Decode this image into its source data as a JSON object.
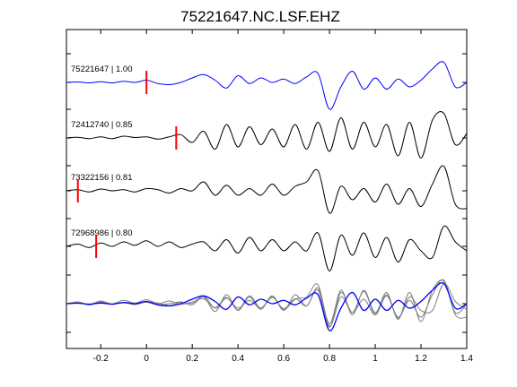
{
  "chart_data": {
    "type": "line",
    "title": "75221647.NC.LSF.EHZ",
    "xlabel": "",
    "ylabel": "",
    "xlim": [
      -0.35,
      1.4
    ],
    "x_ticks": [
      -0.2,
      0,
      0.2,
      0.4,
      0.6,
      0.8,
      1,
      1.2,
      1.4
    ],
    "x_tick_labels": [
      "-0.2",
      "0",
      "0.2",
      "0.4",
      "0.6",
      "0.8",
      "1",
      "1.2",
      "1.4"
    ],
    "grid": false,
    "colors": {
      "master": "#0000ff",
      "other": "#000000",
      "stack_other": "#808080",
      "pick": "#ff0000"
    },
    "traces": [
      {
        "label": "75221647 | 1.00",
        "event_id": "75221647",
        "correlation": 1.0,
        "pick_time": 0.0,
        "color": "#0000ff",
        "x": [
          -0.35,
          -0.3,
          -0.25,
          -0.2,
          -0.15,
          -0.1,
          -0.05,
          0,
          0.05,
          0.1,
          0.15,
          0.2,
          0.25,
          0.3,
          0.35,
          0.4,
          0.45,
          0.5,
          0.55,
          0.6,
          0.65,
          0.7,
          0.75,
          0.8,
          0.85,
          0.9,
          0.95,
          1.0,
          1.05,
          1.1,
          1.15,
          1.2,
          1.25,
          1.3,
          1.35,
          1.4
        ],
        "y": [
          0.0,
          0.02,
          -0.02,
          0.03,
          -0.02,
          0.05,
          0.0,
          0.1,
          -0.05,
          -0.1,
          0.0,
          0.2,
          0.35,
          0.1,
          -0.25,
          0.3,
          -0.05,
          0.2,
          0.0,
          0.15,
          -0.05,
          0.25,
          0.4,
          -1.2,
          -0.2,
          0.5,
          -0.3,
          0.2,
          -0.3,
          0.15,
          -0.2,
          0.1,
          0.6,
          0.9,
          -0.2,
          0.0
        ]
      },
      {
        "label": "72412740 | 0.85",
        "event_id": "72412740",
        "correlation": 0.85,
        "pick_time": 0.13,
        "color": "#000000",
        "x": [
          -0.35,
          -0.3,
          -0.25,
          -0.2,
          -0.15,
          -0.1,
          -0.05,
          0,
          0.05,
          0.1,
          0.15,
          0.2,
          0.25,
          0.3,
          0.35,
          0.4,
          0.45,
          0.5,
          0.55,
          0.6,
          0.65,
          0.7,
          0.75,
          0.8,
          0.85,
          0.9,
          0.95,
          1.0,
          1.05,
          1.1,
          1.15,
          1.2,
          1.25,
          1.3,
          1.35,
          1.4
        ],
        "y": [
          0.0,
          0.03,
          -0.03,
          0.05,
          -0.03,
          0.08,
          0.02,
          0.05,
          -0.05,
          0.05,
          0.15,
          -0.2,
          0.3,
          -0.5,
          0.6,
          -0.4,
          0.5,
          -0.3,
          0.4,
          -0.4,
          0.6,
          -0.5,
          0.7,
          -0.6,
          0.9,
          -0.5,
          0.7,
          -0.4,
          0.6,
          -0.8,
          0.7,
          -0.9,
          0.8,
          1.1,
          -0.3,
          0.2
        ]
      },
      {
        "label": "73322156 | 0.81",
        "event_id": "73322156",
        "correlation": 0.81,
        "pick_time": -0.3,
        "color": "#000000",
        "x": [
          -0.35,
          -0.3,
          -0.25,
          -0.2,
          -0.15,
          -0.1,
          -0.05,
          0,
          0.05,
          0.1,
          0.15,
          0.2,
          0.25,
          0.3,
          0.35,
          0.4,
          0.45,
          0.5,
          0.55,
          0.6,
          0.65,
          0.7,
          0.75,
          0.8,
          0.85,
          0.9,
          0.95,
          1.0,
          1.05,
          1.1,
          1.15,
          1.2,
          1.25,
          1.3,
          1.35,
          1.4
        ],
        "y": [
          0.0,
          0.05,
          -0.05,
          0.08,
          0.0,
          0.05,
          -0.05,
          0.1,
          0.05,
          -0.1,
          0.1,
          0.0,
          0.4,
          -0.2,
          0.25,
          -0.2,
          0.1,
          -0.2,
          0.3,
          -0.2,
          0.2,
          0.4,
          0.9,
          -1.0,
          0.2,
          -0.4,
          0.1,
          -0.5,
          0.3,
          -0.6,
          0.1,
          -0.7,
          0.3,
          1.1,
          -0.6,
          -0.8
        ]
      },
      {
        "label": "72968986 | 0.80",
        "event_id": "72968986",
        "correlation": 0.8,
        "pick_time": -0.22,
        "color": "#000000",
        "x": [
          -0.35,
          -0.3,
          -0.25,
          -0.2,
          -0.15,
          -0.1,
          -0.05,
          0,
          0.05,
          0.1,
          0.15,
          0.2,
          0.25,
          0.3,
          0.35,
          0.4,
          0.45,
          0.5,
          0.55,
          0.6,
          0.65,
          0.7,
          0.75,
          0.8,
          0.85,
          0.9,
          0.95,
          1.0,
          1.05,
          1.1,
          1.15,
          1.2,
          1.25,
          1.3,
          1.35,
          1.4
        ],
        "y": [
          0.0,
          0.1,
          -0.05,
          0.15,
          0.0,
          0.2,
          0.05,
          0.25,
          0.0,
          0.2,
          -0.05,
          0.1,
          0.2,
          -0.2,
          0.3,
          -0.3,
          0.4,
          -0.2,
          0.3,
          -0.2,
          0.2,
          -0.2,
          0.6,
          -1.1,
          0.5,
          -0.4,
          0.6,
          -0.5,
          0.4,
          -0.7,
          0.3,
          -0.2,
          -0.5,
          0.9,
          0.2,
          -0.2
        ]
      }
    ],
    "stack": {
      "description_visible": false,
      "x": [
        -0.35,
        -0.3,
        -0.25,
        -0.2,
        -0.15,
        -0.1,
        -0.05,
        0,
        0.05,
        0.1,
        0.15,
        0.2,
        0.25,
        0.3,
        0.35,
        0.4,
        0.45,
        0.5,
        0.55,
        0.6,
        0.65,
        0.7,
        0.75,
        0.8,
        0.85,
        0.9,
        0.95,
        1.0,
        1.05,
        1.1,
        1.15,
        1.2,
        1.25,
        1.3,
        1.35,
        1.4
      ],
      "master_y": [
        0.0,
        0.02,
        -0.02,
        0.03,
        -0.02,
        0.05,
        0.0,
        0.1,
        -0.05,
        -0.1,
        0.0,
        0.2,
        0.35,
        0.1,
        -0.25,
        0.3,
        -0.05,
        0.2,
        0.0,
        0.15,
        -0.05,
        0.25,
        0.4,
        -1.2,
        -0.2,
        0.5,
        -0.3,
        0.2,
        -0.3,
        0.15,
        -0.2,
        0.1,
        0.6,
        0.9,
        -0.2,
        0.0
      ],
      "others_y": [
        [
          0.0,
          0.06,
          -0.04,
          0.05,
          -0.03,
          0.06,
          0.02,
          0.06,
          -0.05,
          0.0,
          0.08,
          -0.05,
          0.3,
          -0.35,
          0.4,
          -0.3,
          0.3,
          -0.25,
          0.35,
          -0.3,
          0.4,
          -0.1,
          0.7,
          -0.9,
          0.6,
          -0.5,
          0.6,
          -0.4,
          0.5,
          -0.7,
          0.5,
          -0.8,
          0.6,
          1.0,
          -0.4,
          0.0
        ],
        [
          0.0,
          0.07,
          -0.06,
          0.08,
          -0.02,
          0.05,
          -0.04,
          0.08,
          0.03,
          -0.08,
          0.06,
          0.02,
          0.35,
          -0.2,
          0.25,
          -0.2,
          0.15,
          -0.2,
          0.3,
          -0.25,
          0.2,
          0.3,
          0.85,
          -1.0,
          0.3,
          -0.4,
          0.2,
          -0.5,
          0.35,
          -0.6,
          0.15,
          -0.6,
          0.4,
          1.05,
          -0.5,
          -0.6
        ],
        [
          0.0,
          0.08,
          -0.04,
          0.12,
          -0.01,
          0.15,
          0.03,
          0.18,
          0.0,
          0.12,
          -0.03,
          0.08,
          0.22,
          -0.18,
          0.28,
          -0.28,
          0.35,
          -0.2,
          0.28,
          -0.22,
          0.22,
          -0.1,
          0.6,
          -1.05,
          0.5,
          -0.4,
          0.55,
          -0.45,
          0.4,
          -0.65,
          0.3,
          -0.3,
          -0.3,
          0.9,
          0.1,
          -0.25
        ]
      ]
    }
  }
}
